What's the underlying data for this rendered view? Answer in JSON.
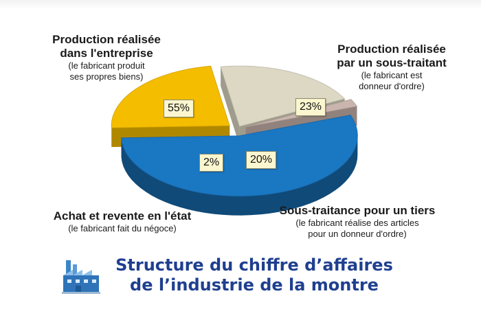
{
  "chart_data": {
    "type": "pie",
    "title_lines": [
      "Structure du chiffre d’affaires",
      "de l’industrie de la montre"
    ],
    "slices": [
      {
        "label": "Production réalisée dans l'entreprise",
        "title_lines": [
          "Production réalisée",
          "dans l'entreprise"
        ],
        "sub_lines": [
          "(le fabricant produit",
          "ses propres biens)"
        ],
        "value": 55,
        "display": "55%",
        "color": "#1a77c2"
      },
      {
        "label": "Production réalisée par un sous-traitant",
        "title_lines": [
          "Production réalisée",
          "par un sous-traitant"
        ],
        "sub_lines": [
          "(le fabricant est",
          "donneur d'ordre)"
        ],
        "value": 23,
        "display": "23%",
        "color": "#f4bd00"
      },
      {
        "label": "Sous-traitance pour un tiers",
        "title_lines": [
          "Sous-traitance pour un tiers"
        ],
        "sub_lines": [
          "(le fabricant réalise des articles",
          "pour un donneur d'ordre)"
        ],
        "value": 20,
        "display": "20%",
        "color": "#ddd8c4"
      },
      {
        "label": "Achat et revente en l'état",
        "title_lines": [
          "Achat et revente en l'état"
        ],
        "sub_lines": [
          "(le fabricant fait du négoce)"
        ],
        "value": 2,
        "display": "2%",
        "color": "#c9b5ad"
      }
    ]
  },
  "icons": {
    "logo": "factory-icon"
  }
}
